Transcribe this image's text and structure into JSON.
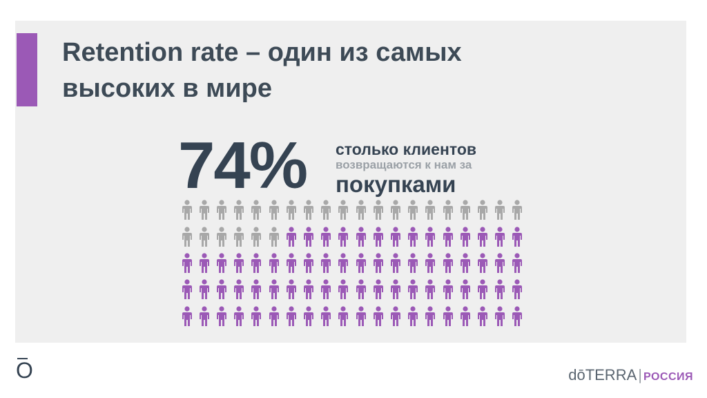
{
  "title": {
    "line1": "Retention rate – один из самых",
    "line2": "высоких в мире"
  },
  "stat": {
    "value": "74%",
    "caption_line1": "столько клиентов",
    "caption_line2": "возвращаются к нам за",
    "caption_line3": "покупками"
  },
  "infographic": {
    "rows": 5,
    "columns": 20,
    "highlighted_share": 0.74,
    "highlight_color": "#9b59b6",
    "base_color": "#a8a8a8",
    "icon": "person-icon"
  },
  "footer": {
    "logo_glyph": "ō",
    "brand_name": "dōTERRA",
    "separator": "|",
    "region": "РОССИЯ"
  },
  "colors": {
    "accent": "#9b59b6",
    "text_dark": "#354352",
    "text_gray": "#9aa0a6"
  }
}
